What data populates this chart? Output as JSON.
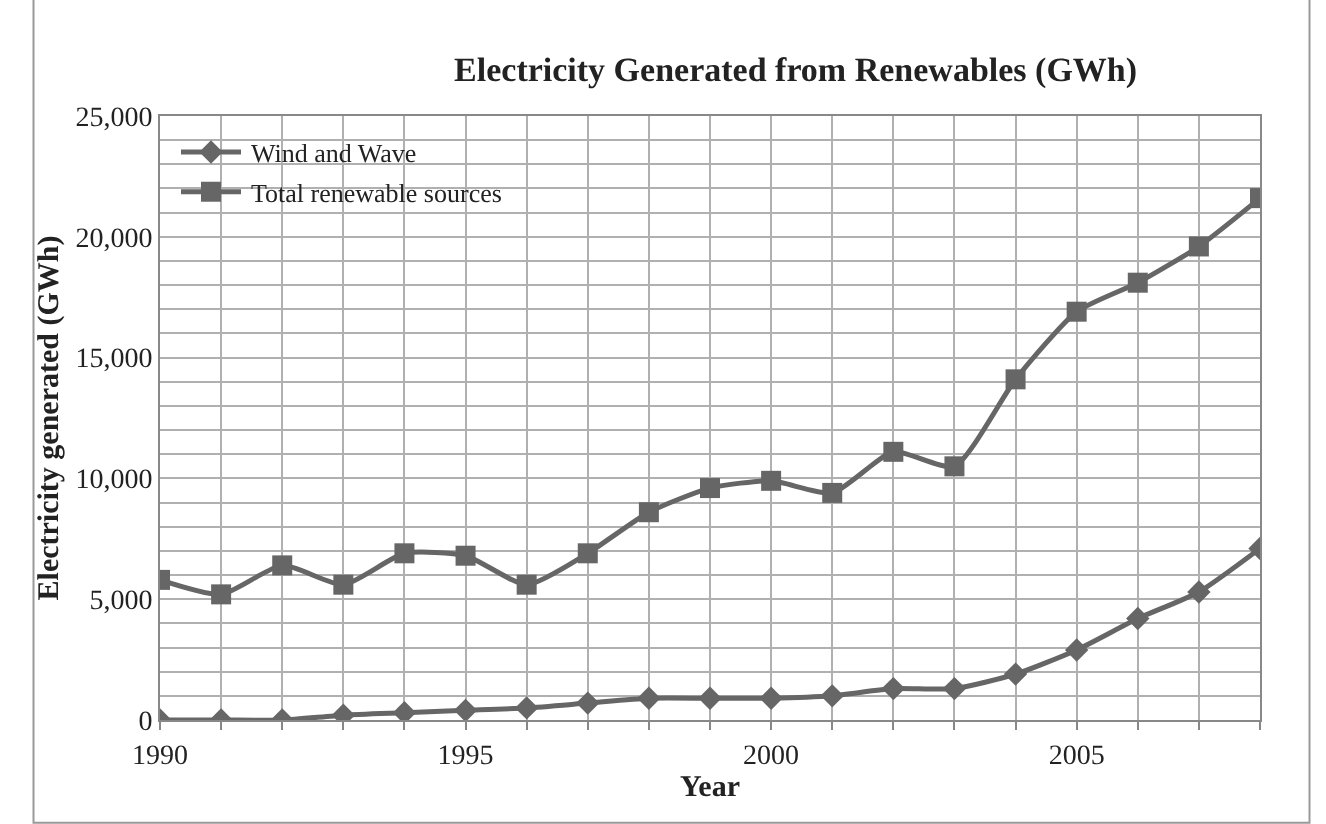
{
  "chart_data": {
    "type": "line",
    "title": "Electricity Generated from Renewables (GWh)",
    "xlabel": "Year",
    "ylabel": "Electricity generated (GWh)",
    "x": [
      1990,
      1991,
      1992,
      1993,
      1994,
      1995,
      1996,
      1997,
      1998,
      1999,
      2000,
      2001,
      2002,
      2003,
      2004,
      2005,
      2006,
      2007,
      2008
    ],
    "series": [
      {
        "name": "Wind and Wave",
        "color": "#666666",
        "marker": "diamond",
        "values": [
          0,
          0,
          0,
          200,
          300,
          400,
          500,
          700,
          900,
          900,
          900,
          1000,
          1300,
          1300,
          1900,
          2900,
          4200,
          5300,
          7100
        ]
      },
      {
        "name": "Total renewable sources",
        "color": "#666666",
        "marker": "square",
        "values": [
          5800,
          5200,
          6400,
          5600,
          6900,
          6800,
          5600,
          6900,
          8600,
          9600,
          9900,
          9400,
          11100,
          10500,
          14100,
          16900,
          18100,
          19600,
          21600
        ]
      }
    ],
    "xlim": [
      1990,
      2008
    ],
    "xticks": [
      1990,
      {
        "value": 1991,
        "label": null
      },
      {
        "value": 1992,
        "label": null
      },
      {
        "value": 1993,
        "label": null
      },
      {
        "value": 1994,
        "label": null
      },
      1995,
      {
        "value": 1996,
        "label": null
      },
      {
        "value": 1997,
        "label": null
      },
      {
        "value": 1998,
        "label": null
      },
      {
        "value": 1999,
        "label": null
      },
      2000,
      {
        "value": 2001,
        "label": null
      },
      {
        "value": 2002,
        "label": null
      },
      {
        "value": 2003,
        "label": null
      },
      {
        "value": 2004,
        "label": null
      },
      2005,
      {
        "value": 2006,
        "label": null
      },
      {
        "value": 2007,
        "label": null
      },
      {
        "value": 2008,
        "label": null
      }
    ],
    "ylim": [
      0,
      25000
    ],
    "yticks": [
      {
        "value": 0,
        "label": "0"
      },
      {
        "value": 1000,
        "label": null
      },
      {
        "value": 2000,
        "label": null
      },
      {
        "value": 3000,
        "label": null
      },
      {
        "value": 4000,
        "label": null
      },
      {
        "value": 5000,
        "label": "5,000"
      },
      {
        "value": 6000,
        "label": null
      },
      {
        "value": 7000,
        "label": null
      },
      {
        "value": 8000,
        "label": null
      },
      {
        "value": 9000,
        "label": null
      },
      {
        "value": 10000,
        "label": "10,000"
      },
      {
        "value": 11000,
        "label": null
      },
      {
        "value": 12000,
        "label": null
      },
      {
        "value": 13000,
        "label": null
      },
      {
        "value": 14000,
        "label": null
      },
      {
        "value": 15000,
        "label": "15,000"
      },
      {
        "value": 16000,
        "label": null
      },
      {
        "value": 17000,
        "label": null
      },
      {
        "value": 18000,
        "label": null
      },
      {
        "value": 19000,
        "label": null
      },
      {
        "value": 20000,
        "label": "20,000"
      },
      {
        "value": 21000,
        "label": null
      },
      {
        "value": 22000,
        "label": null
      },
      {
        "value": 23000,
        "label": null
      },
      {
        "value": 24000,
        "label": null
      },
      {
        "value": 25000,
        "label": "25,000"
      }
    ],
    "grid": true,
    "legend": "top left",
    "line_style": "solid"
  }
}
